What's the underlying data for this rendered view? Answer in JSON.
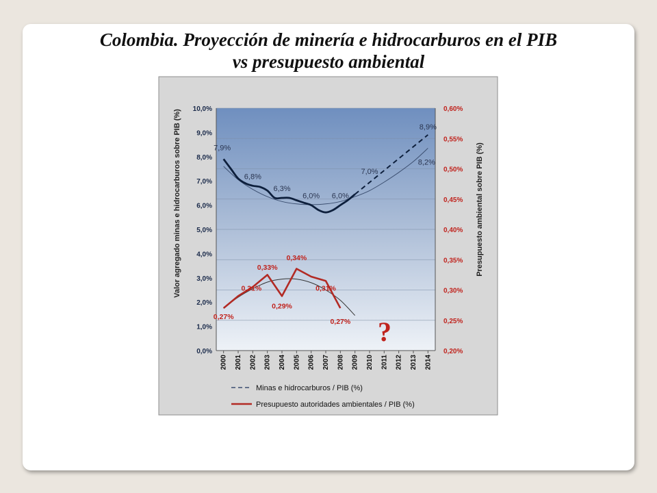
{
  "title_line1": "Colombia. Proyección de minería e hidrocarburos en el PIB",
  "title_line2": "vs presupuesto ambiental",
  "colors": {
    "mining_line": "#0d1f3c",
    "mining_trend": "#3c4f70",
    "budget_line": "#b22a24",
    "budget_text": "#c0231d",
    "axis_left_text": "#1a2a4a",
    "question_mark": "#c0231d"
  },
  "question_mark": "?",
  "chart_data": {
    "type": "line",
    "x": [
      2000,
      2001,
      2002,
      2003,
      2004,
      2005,
      2006,
      2007,
      2008,
      2009,
      2010,
      2011,
      2012,
      2013,
      2014
    ],
    "y_left": {
      "label": "Valor agregado minas e hidrocarburos sobre PIB (%)",
      "ticks": [
        "0,0%",
        "1,0%",
        "2,0%",
        "3,0%",
        "4,0%",
        "5,0%",
        "6,0%",
        "7,0%",
        "8,0%",
        "9,0%",
        "10,0%"
      ],
      "range": [
        0,
        10
      ]
    },
    "y_right": {
      "label": "Presupuesto ambiental sobre PIB (%)",
      "ticks": [
        "0,20%",
        "0,25%",
        "0,30%",
        "0,35%",
        "0,40%",
        "0,45%",
        "0,50%",
        "0,55%",
        "0,60%"
      ],
      "range": [
        0.2,
        0.6
      ]
    },
    "series": [
      {
        "name": "Minas e hidrocarburos / PIB (%)",
        "axis": "left",
        "actual": {
          "x": [
            2000,
            2000.5,
            2001,
            2001.5,
            2002,
            2002.5,
            2003,
            2003.5,
            2004,
            2004.5,
            2005,
            2005.5,
            2006,
            2006.5,
            2007,
            2007.5,
            2008,
            2008.5,
            2009
          ],
          "y": [
            7.9,
            7.5,
            7.1,
            6.9,
            6.8,
            6.75,
            6.6,
            6.3,
            6.3,
            6.3,
            6.2,
            6.1,
            6.0,
            5.8,
            5.7,
            5.8,
            6.0,
            6.2,
            6.45
          ]
        },
        "projection": {
          "x": [
            2009,
            2014
          ],
          "y": [
            6.45,
            8.9
          ]
        },
        "trend_fit": {
          "x": [
            2000,
            2001,
            2002,
            2003,
            2004,
            2005,
            2006,
            2007,
            2008,
            2009,
            2010,
            2011,
            2012,
            2013,
            2014
          ],
          "y": [
            7.6,
            7.05,
            6.65,
            6.35,
            6.15,
            6.05,
            6.02,
            6.05,
            6.15,
            6.35,
            6.6,
            6.95,
            7.35,
            7.8,
            8.35
          ]
        },
        "labels": [
          {
            "x": 2000,
            "y": 7.9,
            "text": "7,9%"
          },
          {
            "x": 2002,
            "y": 6.8,
            "text": "6,8%"
          },
          {
            "x": 2004,
            "y": 6.3,
            "text": "6,3%"
          },
          {
            "x": 2006,
            "y": 6.0,
            "text": "6,0%"
          },
          {
            "x": 2008,
            "y": 6.0,
            "text": "6,0%"
          },
          {
            "x": 2010,
            "y": 7.0,
            "text": "7,0%"
          },
          {
            "x": 2014,
            "y": 8.9,
            "text": "8,9%"
          },
          {
            "x": 2014,
            "y": 8.2,
            "text": "8,2%"
          }
        ]
      },
      {
        "name": "Presupuesto autoridades ambientales / PIB (%)",
        "axis": "right",
        "actual": {
          "x": [
            2000,
            2001,
            2002,
            2003,
            2004,
            2005,
            2006,
            2007,
            2008
          ],
          "y": [
            0.27,
            0.29,
            0.305,
            0.325,
            0.29,
            0.335,
            0.322,
            0.315,
            0.27
          ]
        },
        "trend_fit": {
          "x": [
            2000,
            2001,
            2002,
            2003,
            2004,
            2005,
            2006,
            2007,
            2008,
            2009
          ],
          "y": [
            0.27,
            0.288,
            0.302,
            0.313,
            0.318,
            0.318,
            0.312,
            0.3,
            0.283,
            0.258
          ]
        },
        "labels": [
          {
            "x": 2000,
            "y": 0.27,
            "text": "0,27%"
          },
          {
            "x": 2002,
            "y": 0.31,
            "text": "0,31%"
          },
          {
            "x": 2003,
            "y": 0.33,
            "text": "0,33%"
          },
          {
            "x": 2004,
            "y": 0.29,
            "text": "0,29%"
          },
          {
            "x": 2005,
            "y": 0.34,
            "text": "0,34%"
          },
          {
            "x": 2007,
            "y": 0.31,
            "text": "0,31%"
          },
          {
            "x": 2008,
            "y": 0.27,
            "text": "0,27%"
          }
        ]
      }
    ],
    "legend": {
      "placement": "bottom",
      "entries": [
        "Minas e hidrocarburos / PIB (%)",
        "Presupuesto autoridades ambientales / PIB (%)"
      ]
    },
    "grid": true
  }
}
